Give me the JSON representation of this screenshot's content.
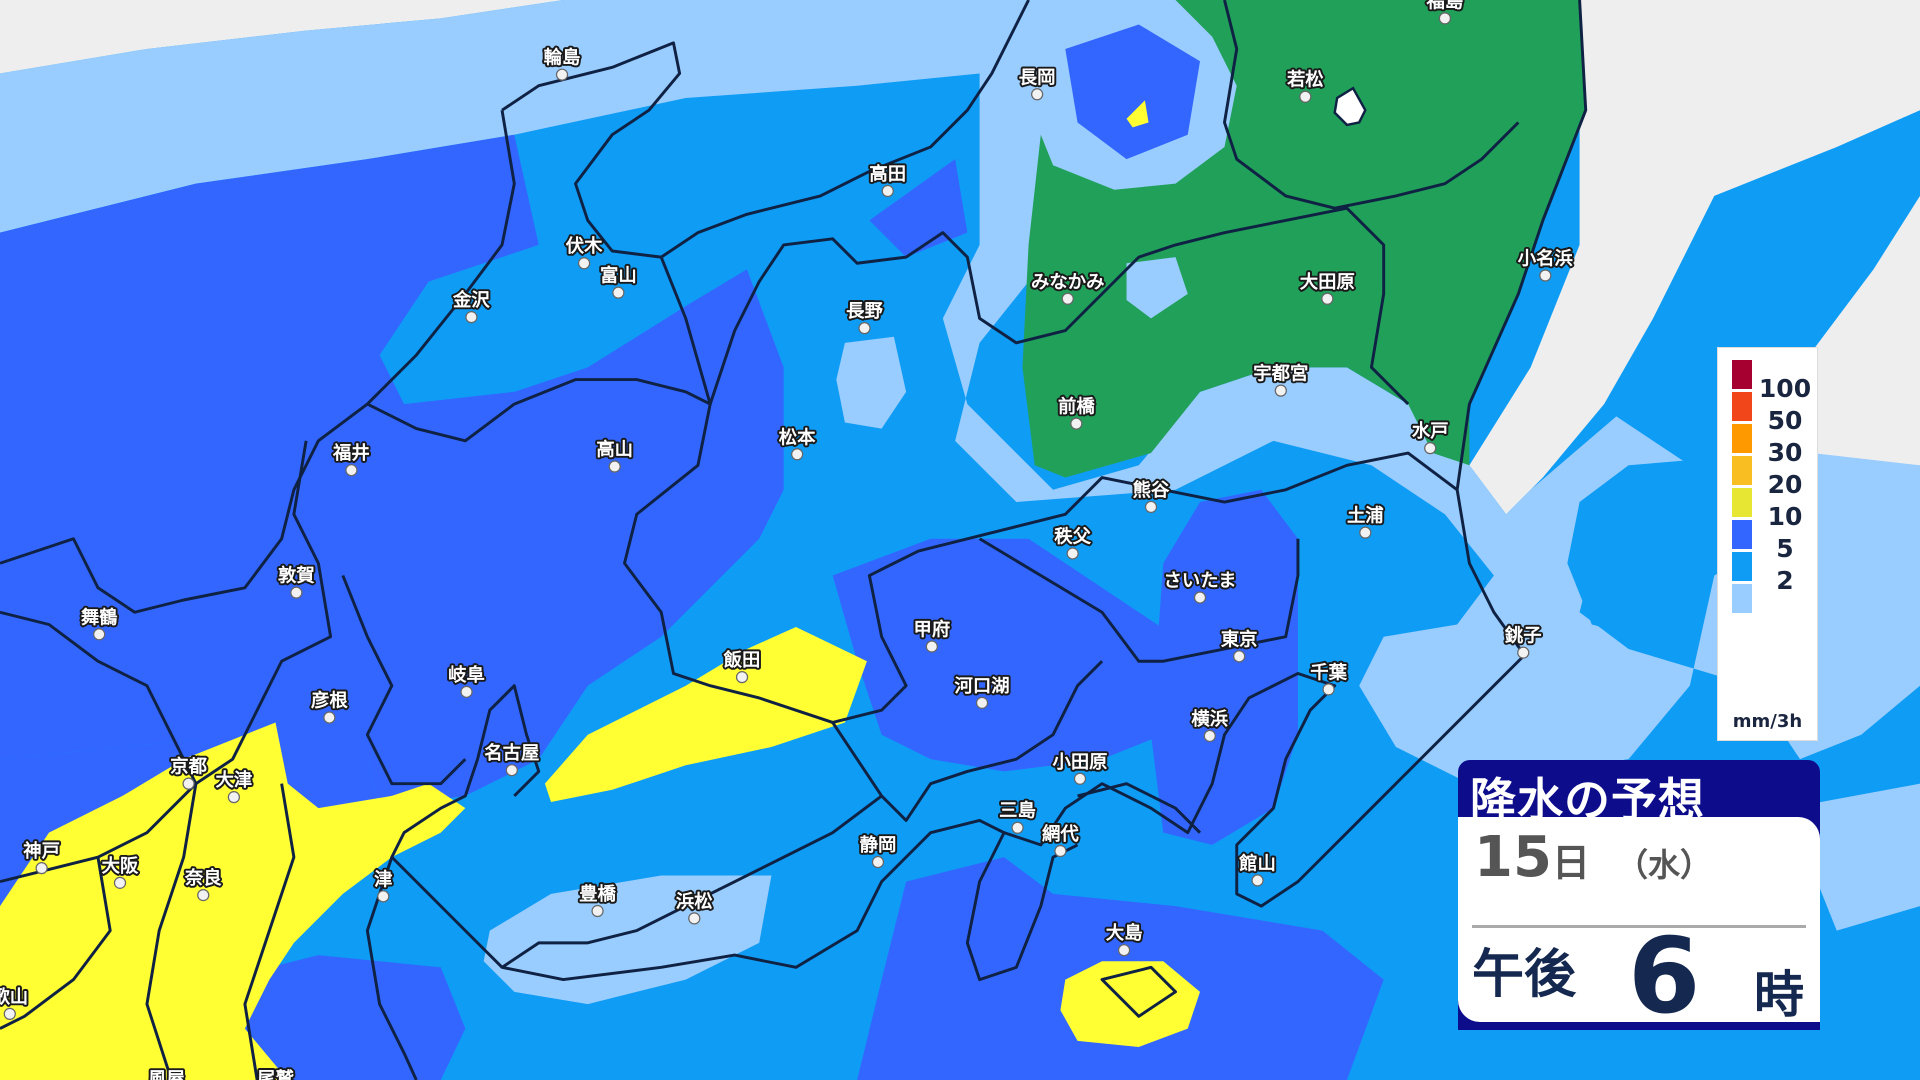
{
  "colors": {
    "no_rain": "#eeeeee",
    "lt2": "#99ccff",
    "2to5": "#0f9cf5",
    "5to10": "#3366ff",
    "10to20": "#ffff33",
    "snow_green": "#21a05a",
    "border": "#0f2244"
  },
  "cities": [
    "輪島",
    "長岡",
    "若松",
    "福島",
    "高田",
    "伏木",
    "富山",
    "金沢",
    "長野",
    "みなかみ",
    "大田原",
    "小名浜",
    "宇都宮",
    "前橋",
    "水戸",
    "福井",
    "高山",
    "松本",
    "熊谷",
    "土浦",
    "秩父",
    "敦賀",
    "舞鶴",
    "さいたま",
    "甲府",
    "東京",
    "飯田",
    "岐阜",
    "彦根",
    "河口湖",
    "千葉",
    "銚子",
    "横浜",
    "名古屋",
    "京都",
    "大津",
    "小田原",
    "三島",
    "網代",
    "静岡",
    "神戸",
    "大阪",
    "奈良",
    "津",
    "館山",
    "豊橋",
    "浜松",
    "大島",
    "歌山",
    "風屋",
    "尾鷲"
  ],
  "legend": {
    "levels": [
      {
        "label": "100",
        "color": "#a50030"
      },
      {
        "label": "50",
        "color": "#f0461a"
      },
      {
        "label": "30",
        "color": "#ff9900"
      },
      {
        "label": "20",
        "color": "#f9be22"
      },
      {
        "label": "10",
        "color": "#e6e633"
      },
      {
        "label": "5",
        "color": "#3366ff"
      },
      {
        "label": "2",
        "color": "#0f9cf5"
      },
      {
        "label": "",
        "color": "#99ccff"
      }
    ],
    "unit": "mm/3h"
  },
  "panel": {
    "title": "降水の予想",
    "day": "15",
    "day_unit": "日",
    "weekday": "（水）",
    "ampm": "午後",
    "hour": "6",
    "hour_unit": "時"
  }
}
